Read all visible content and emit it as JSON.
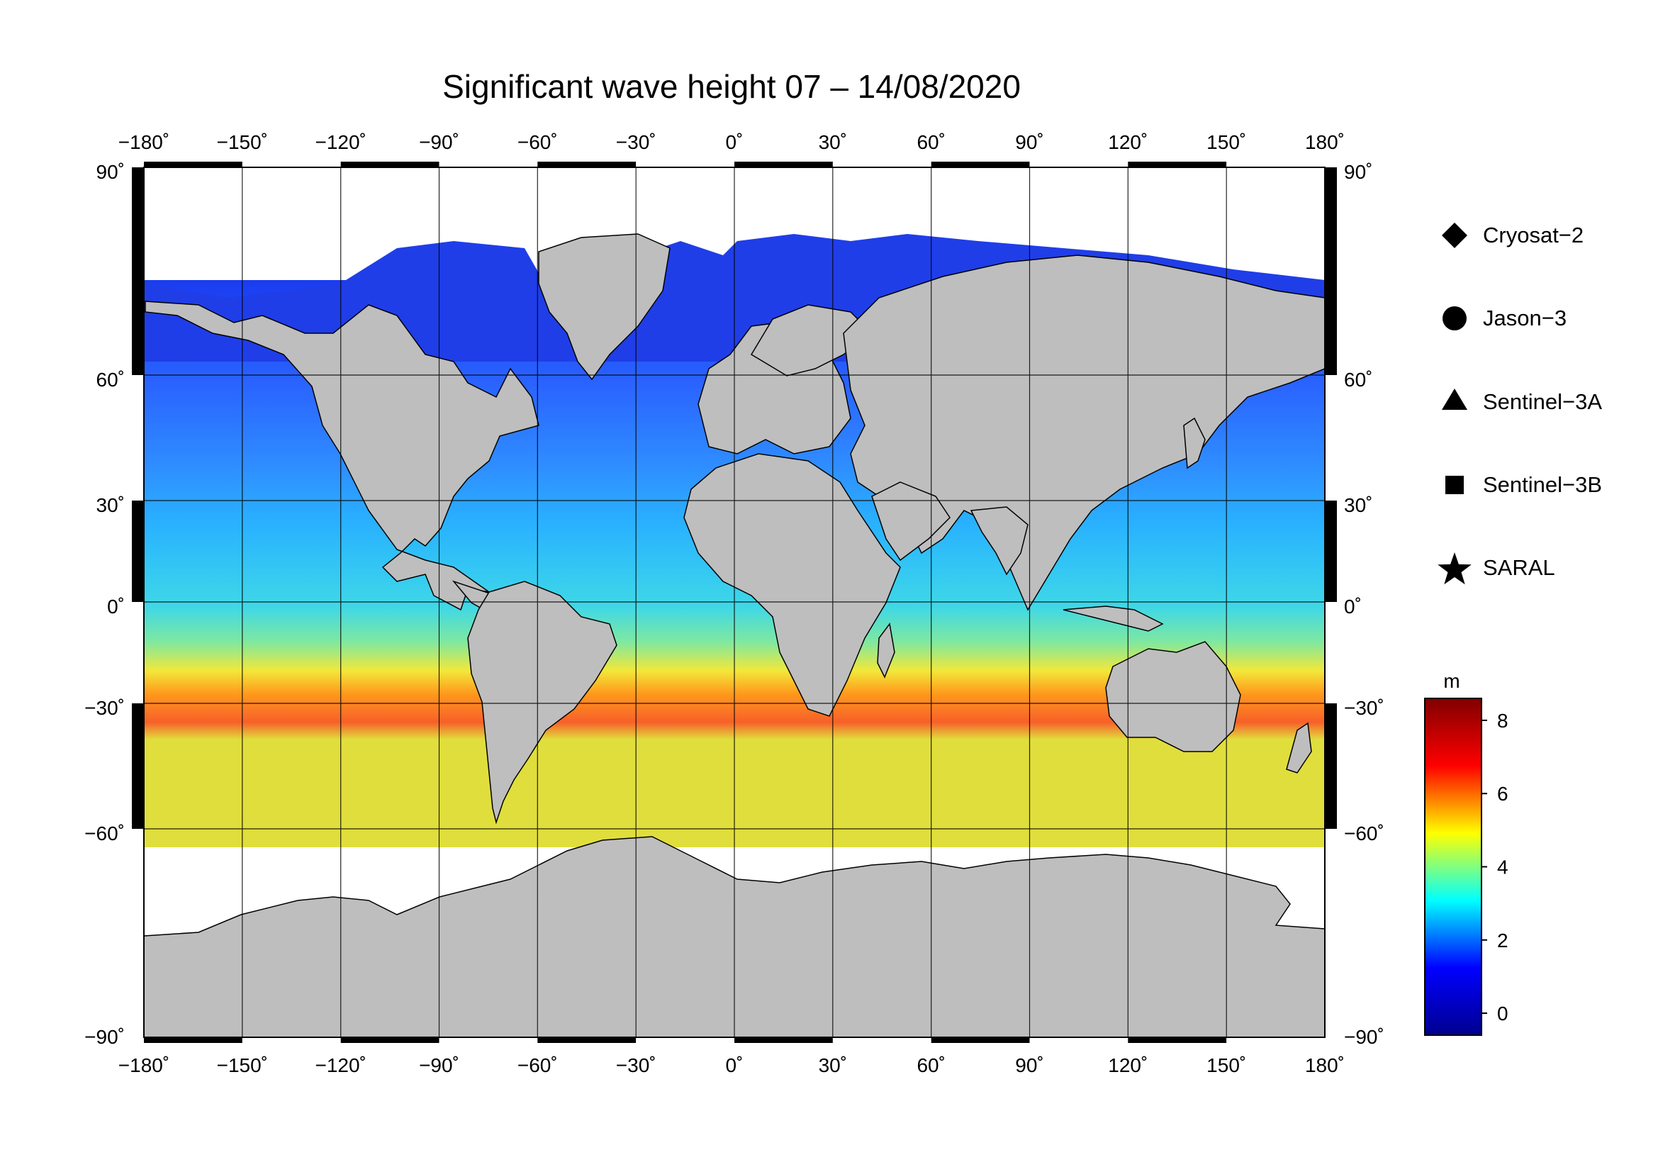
{
  "title": "Significant wave height 07 – 14/08/2020",
  "map": {
    "lon_ticks": [
      -180,
      -150,
      -120,
      -90,
      -60,
      -30,
      0,
      30,
      60,
      90,
      120,
      150,
      180
    ],
    "lat_ticks": [
      90,
      60,
      30,
      0,
      -30,
      -60,
      -90
    ],
    "lon_labels": [
      "−180˚",
      "−150˚",
      "−120˚",
      "−90˚",
      "−60˚",
      "−30˚",
      "0˚",
      "30˚",
      "60˚",
      "90˚",
      "120˚",
      "150˚",
      "180˚"
    ],
    "lat_labels": [
      "90˚",
      "60˚",
      "30˚",
      "0˚",
      "−30˚",
      "−60˚",
      "−90˚"
    ],
    "lon_range": [
      -180,
      180
    ],
    "lat_range": [
      -90,
      90
    ],
    "land_color": "#bebebe",
    "ice_color": "#ffffff",
    "grid": true
  },
  "legend": {
    "items": [
      {
        "label": "Cryosat−2",
        "marker": "diamond"
      },
      {
        "label": "Jason−3",
        "marker": "circle"
      },
      {
        "label": "Sentinel−3A",
        "marker": "triangle"
      },
      {
        "label": "Sentinel−3B",
        "marker": "square"
      },
      {
        "label": "SARAL",
        "marker": "star"
      }
    ]
  },
  "colorbar": {
    "unit": "m",
    "range": [
      -0.6,
      8.6
    ],
    "ticks": [
      0,
      2,
      4,
      6,
      8
    ],
    "tick_labels": [
      "0",
      "2",
      "4",
      "6",
      "8"
    ],
    "colormap": [
      "#00008f",
      "#0000ff",
      "#00ffff",
      "#ffff00",
      "#ff0000",
      "#800000"
    ]
  }
}
